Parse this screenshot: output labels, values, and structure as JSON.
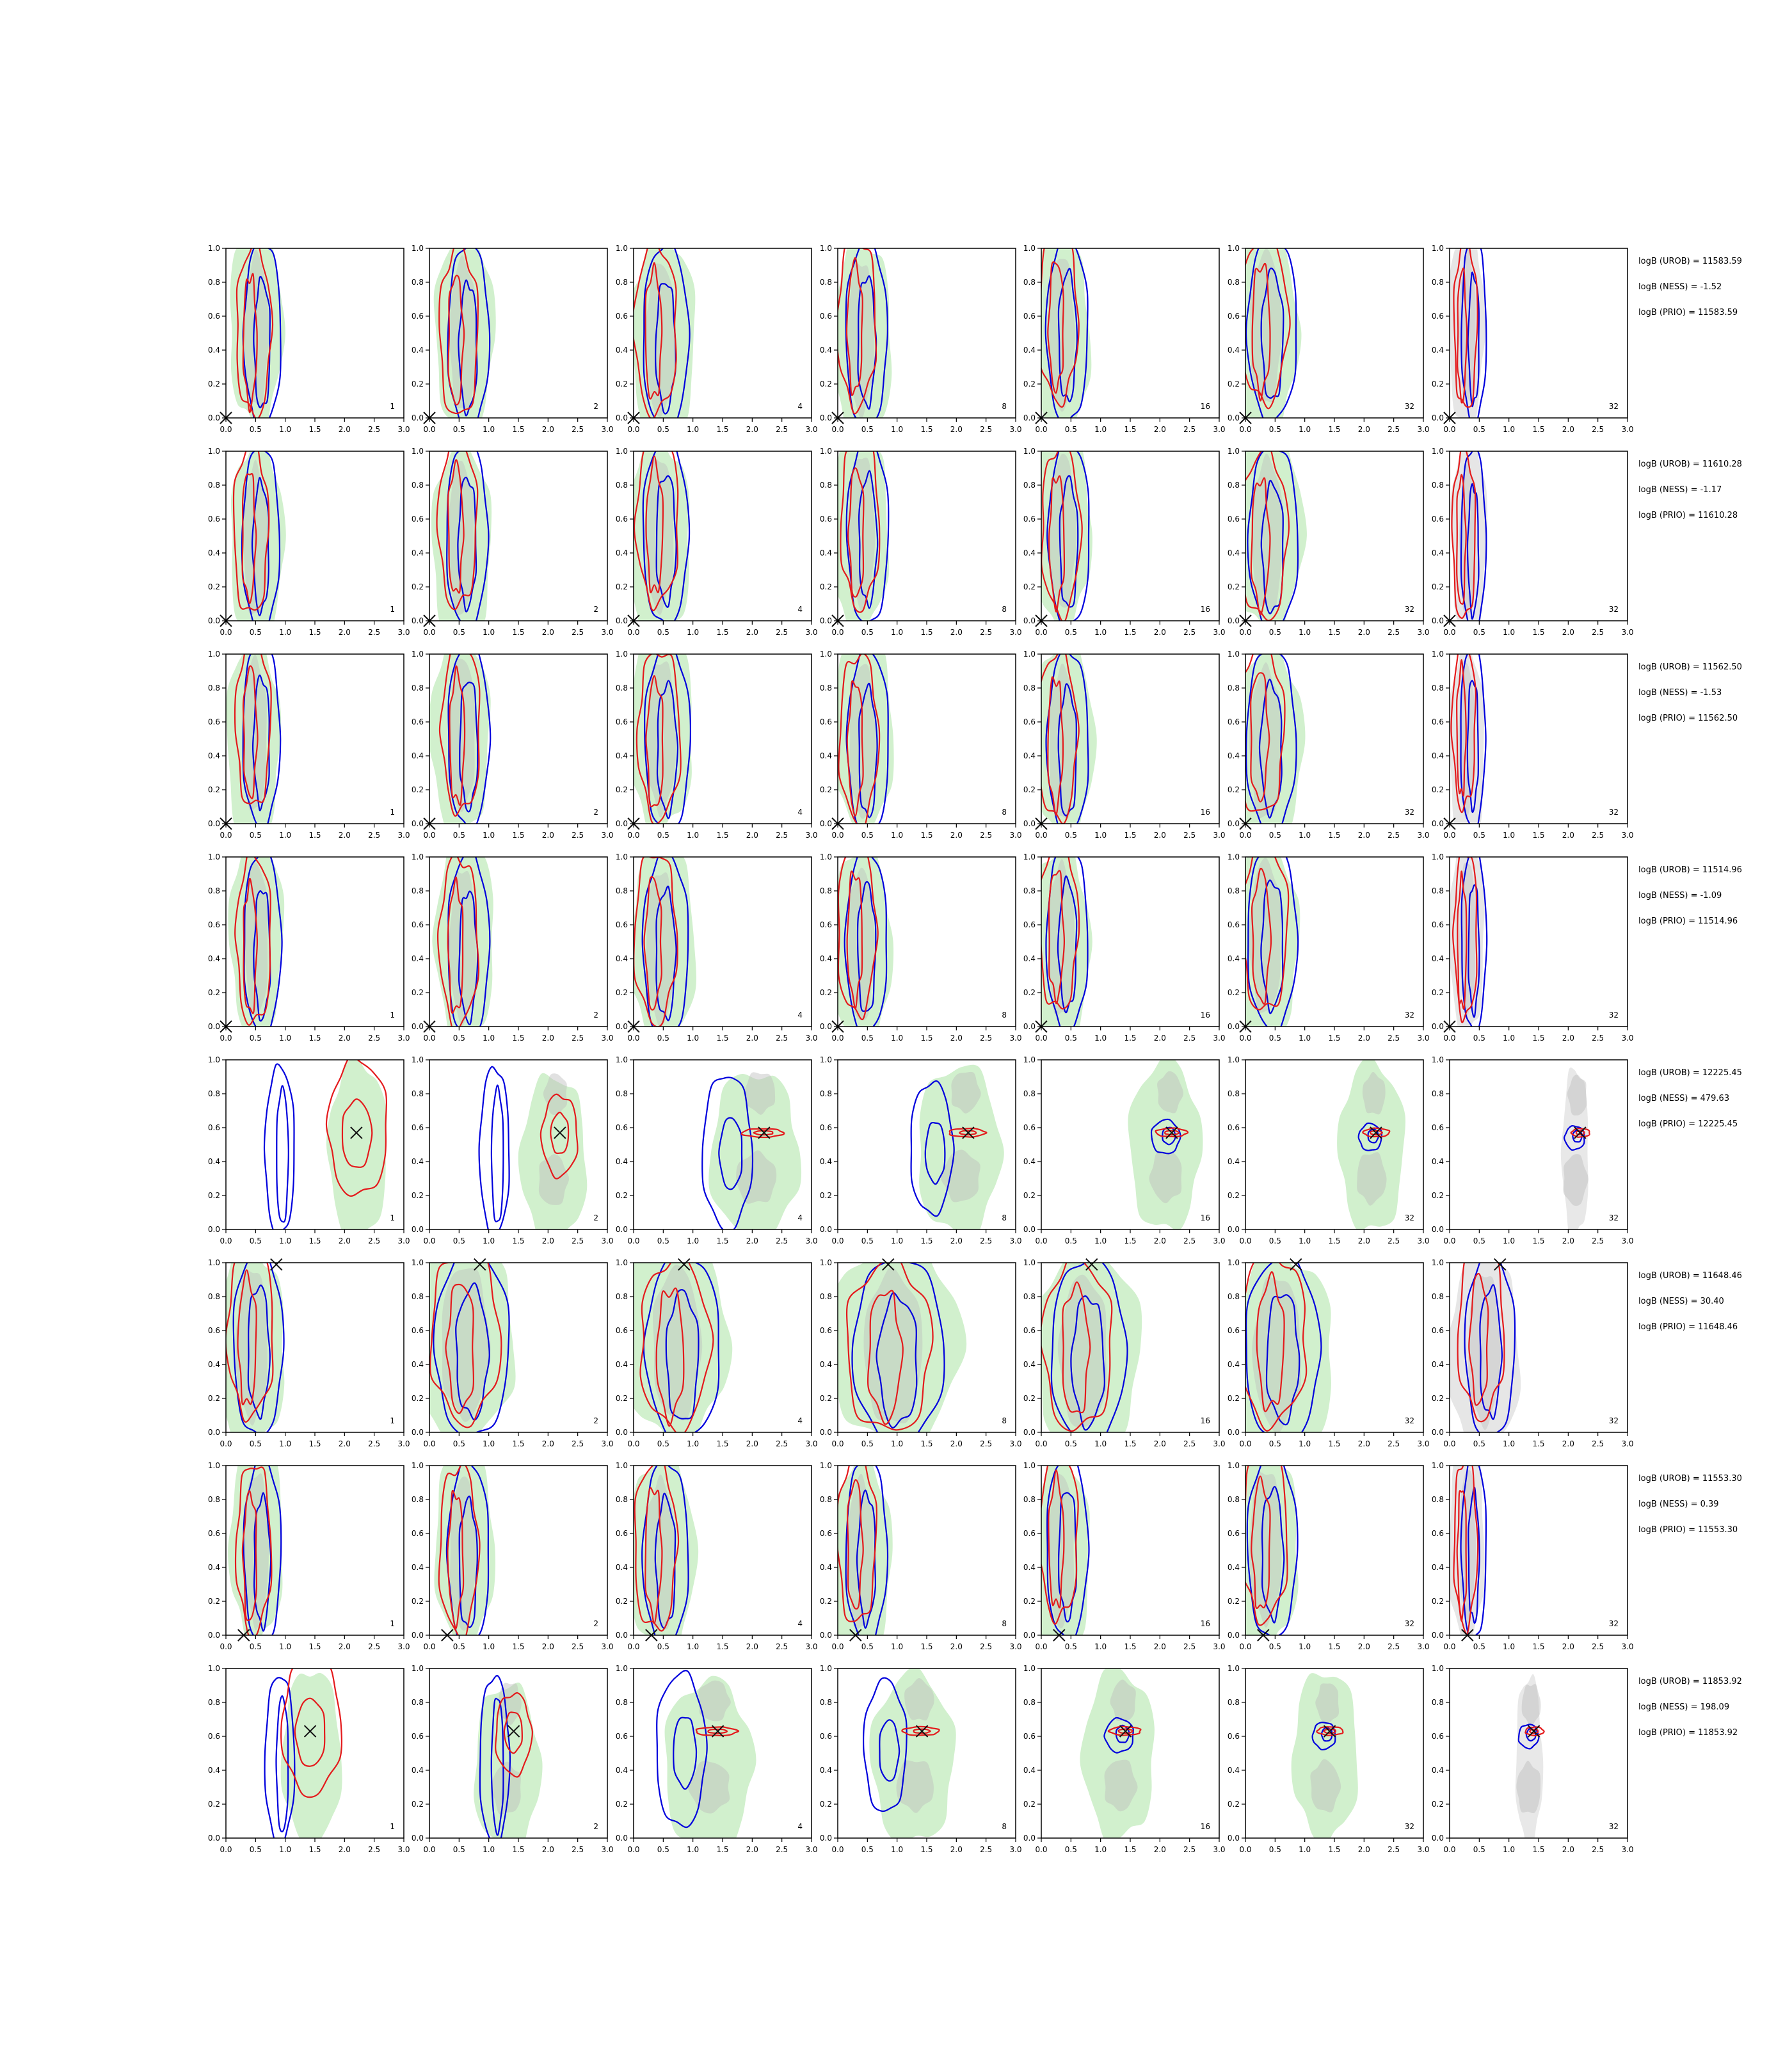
{
  "figure": {
    "panel_labels": [
      "1",
      "2",
      "4",
      "8",
      "16",
      "32",
      "32"
    ],
    "x_ticks": [
      "0.0",
      "0.5",
      "1.0",
      "1.5",
      "2.0",
      "2.5",
      "3.0"
    ],
    "y_ticks": [
      "0.0",
      "0.2",
      "0.4",
      "0.6",
      "0.8",
      "1.0"
    ],
    "xlim": [
      0,
      3
    ],
    "ylim": [
      0,
      1
    ],
    "colors": {
      "red": "#e41a1c",
      "blue": "#0000dd",
      "green": "#c9edc4",
      "grey": "#dcdcdc",
      "marker": "#111111"
    }
  },
  "rows": [
    {
      "annotations": [
        "logB (UROB) = 11583.59",
        "logB (NESS) = -1.52",
        "logB (PRIO) = 11583.59"
      ]
    },
    {
      "annotations": [
        "logB (UROB) = 11610.28",
        "logB (NESS) = -1.17",
        "logB (PRIO) = 11610.28"
      ]
    },
    {
      "annotations": [
        "logB (UROB) = 11562.50",
        "logB (NESS) = -1.53",
        "logB (PRIO) = 11562.50"
      ]
    },
    {
      "annotations": [
        "logB (UROB) = 11514.96",
        "logB (NESS) = -1.09",
        "logB (PRIO) = 11514.96"
      ]
    },
    {
      "annotations": [
        "logB (UROB) = 12225.45",
        "logB (NESS) = 479.63",
        "logB (PRIO) = 12225.45"
      ]
    },
    {
      "annotations": [
        "logB (UROB) = 11648.46",
        "logB (NESS) = 30.40",
        "logB (PRIO) = 11648.46"
      ]
    },
    {
      "annotations": [
        "logB (UROB) = 11553.30",
        "logB (NESS) = 0.39",
        "logB (PRIO) = 11553.30"
      ]
    },
    {
      "annotations": [
        "logB (UROB) = 11853.92",
        "logB (NESS) = 198.09",
        "logB (PRIO) = 11853.92"
      ]
    }
  ],
  "chart_data": {
    "type": "scatter",
    "description_of_marks": "8x7 grid of 2D density contour panels (red and blue contour lines over green/grey filled regions) with a true-value cross marker",
    "xlim": [
      0,
      3
    ],
    "ylim": [
      0,
      1
    ],
    "x_ticks": [
      0.0,
      0.5,
      1.0,
      1.5,
      2.0,
      2.5,
      3.0
    ],
    "y_ticks": [
      0.0,
      0.2,
      0.4,
      0.6,
      0.8,
      1.0
    ],
    "true_points": [
      {
        "row": 1,
        "x": 0.0,
        "y": 0.0
      },
      {
        "row": 2,
        "x": 0.0,
        "y": 0.0
      },
      {
        "row": 3,
        "x": 0.0,
        "y": 0.0
      },
      {
        "row": 4,
        "x": 0.0,
        "y": 0.0
      },
      {
        "row": 5,
        "x": 2.2,
        "y": 0.57
      },
      {
        "row": 6,
        "x": 0.85,
        "y": 0.99
      },
      {
        "row": 7,
        "x": 0.3,
        "y": 0.0
      },
      {
        "row": 8,
        "x": 1.42,
        "y": 0.63
      }
    ],
    "row_types": [
      "wide",
      "wide",
      "wide",
      "wide",
      "peak",
      "top",
      "wide",
      "peak"
    ]
  }
}
